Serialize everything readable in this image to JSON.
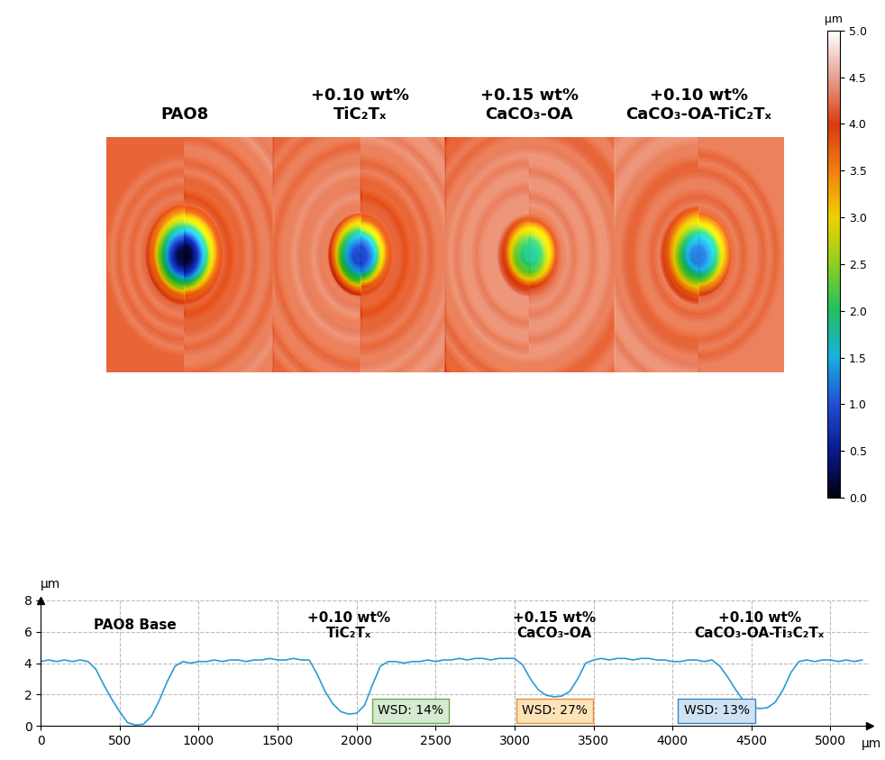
{
  "chart_data": [
    {
      "type": "surface_map",
      "labels": [
        "PAO8",
        "+0.10 wt%\nTiC₂Tₓ",
        "+0.15 wt%\nCaCO₃-OA",
        "+0.10 wt%\nCaCO₃-OA-TiC₂Tₓ"
      ],
      "tick_labels": false,
      "colorbar_label": "μm",
      "colorbar_lim": [
        0,
        5
      ],
      "colorbar_ticks": [
        {
          "value": 0,
          "label": "0.0"
        },
        {
          "value": 0.5,
          "label": "0.5"
        },
        {
          "value": 1,
          "label": "1.0"
        },
        {
          "value": 1.5,
          "label": "1.5"
        },
        {
          "value": 2,
          "label": "2.0"
        },
        {
          "value": 2.5,
          "label": "2.5"
        },
        {
          "value": 3,
          "label": "3.0"
        },
        {
          "value": 3.5,
          "label": "3.5"
        },
        {
          "value": 4,
          "label": "4.0"
        },
        {
          "value": 4.5,
          "label": "4.5"
        },
        {
          "value": 5,
          "label": "5.0"
        }
      ]
    },
    {
      "type": "line",
      "x": [
        0,
        50,
        100,
        150,
        200,
        250,
        300,
        350,
        400,
        450,
        500,
        550,
        600,
        650,
        700,
        750,
        800,
        850,
        900,
        950,
        1000,
        1050,
        1100,
        1150,
        1200,
        1250,
        1300,
        1350,
        1400,
        1450,
        1500,
        1550,
        1600,
        1650,
        1700,
        1750,
        1800,
        1850,
        1900,
        1950,
        2000,
        2050,
        2100,
        2150,
        2200,
        2250,
        2300,
        2350,
        2400,
        2450,
        2500,
        2550,
        2600,
        2650,
        2700,
        2750,
        2800,
        2850,
        2900,
        2950,
        3000,
        3050,
        3100,
        3150,
        3200,
        3250,
        3300,
        3350,
        3400,
        3450,
        3500,
        3550,
        3600,
        3650,
        3700,
        3750,
        3800,
        3850,
        3900,
        3950,
        4000,
        4050,
        4100,
        4150,
        4200,
        4250,
        4300,
        4350,
        4400,
        4450,
        4500,
        4550,
        4600,
        4650,
        4700,
        4750,
        4800,
        4850,
        4900,
        4950,
        5000,
        5050,
        5100,
        5150,
        5200
      ],
      "values": [
        4.1,
        4.2,
        4.1,
        4.2,
        4.1,
        4.2,
        4.1,
        3.6,
        2.6,
        1.7,
        0.9,
        0.2,
        0.05,
        0.1,
        0.6,
        1.6,
        2.8,
        3.8,
        4.1,
        4.0,
        4.1,
        4.1,
        4.2,
        4.1,
        4.2,
        4.2,
        4.1,
        4.2,
        4.2,
        4.3,
        4.2,
        4.2,
        4.3,
        4.2,
        4.2,
        3.3,
        2.2,
        1.4,
        0.9,
        0.75,
        0.8,
        1.3,
        2.6,
        3.8,
        4.1,
        4.1,
        4.0,
        4.1,
        4.1,
        4.2,
        4.1,
        4.2,
        4.2,
        4.3,
        4.2,
        4.3,
        4.3,
        4.2,
        4.3,
        4.3,
        4.3,
        3.9,
        3.0,
        2.3,
        1.95,
        1.85,
        1.9,
        2.2,
        3.0,
        4.0,
        4.2,
        4.3,
        4.2,
        4.3,
        4.3,
        4.2,
        4.3,
        4.3,
        4.2,
        4.2,
        4.1,
        4.1,
        4.2,
        4.2,
        4.1,
        4.2,
        3.8,
        3.1,
        2.3,
        1.6,
        1.2,
        1.1,
        1.15,
        1.5,
        2.3,
        3.4,
        4.1,
        4.2,
        4.1,
        4.2,
        4.2,
        4.1,
        4.2,
        4.1,
        4.2
      ],
      "color": "#2b9bd6",
      "xlim": [
        0,
        5250
      ],
      "ylim": [
        0,
        8
      ],
      "xticks": [
        0,
        500,
        1000,
        1500,
        2000,
        2500,
        3000,
        3500,
        4000,
        4500,
        5000
      ],
      "yticks": [
        0,
        2,
        4,
        6,
        8
      ],
      "grid": true,
      "x_label": "μm",
      "y_label": "μm",
      "labels": [
        "PAO8 Base",
        "+0.10 wt%\nTiC₂Tₓ",
        "+0.15 wt%\nCaCO₃-OA",
        "+0.10 wt%\nCaCO₃-OA-Ti₃C₂Tₓ"
      ],
      "annotations": [
        {
          "text": "WSD: 14%",
          "color": "#d5ead0",
          "edge_color": "#6aa84f"
        },
        {
          "text": "WSD: 27%",
          "color": "#fde3b8",
          "edge_color": "#e69138"
        },
        {
          "text": "WSD: 13%",
          "color": "#cfe2f3",
          "edge_color": "#3d85c6"
        }
      ]
    }
  ]
}
